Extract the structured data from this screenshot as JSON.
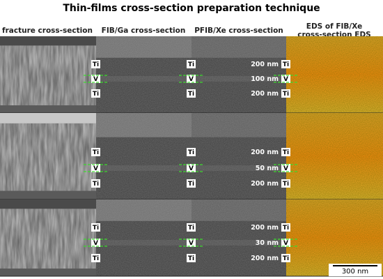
{
  "title": "Thin-films cross-section preparation technique",
  "columns": [
    "fracture cross-section",
    "FIB/Ga cross-section",
    "PFIB/Xe cross-section",
    "EDS of FIB/Xe cross-section EDS"
  ],
  "rows": [
    {
      "layers": [
        "Ti",
        "V",
        "Ti"
      ],
      "thicknesses": [
        "200 nm",
        "100 nm",
        "200 nm"
      ]
    },
    {
      "layers": [
        "Ti",
        "V",
        "Ti"
      ],
      "thicknesses": [
        "200 nm",
        "50 nm",
        "200 nm"
      ]
    },
    {
      "layers": [
        "Ti",
        "V",
        "Ti"
      ],
      "thicknesses": [
        "200 nm",
        "30 nm",
        "200 nm"
      ]
    }
  ],
  "scale_bar": "300 nm"
}
